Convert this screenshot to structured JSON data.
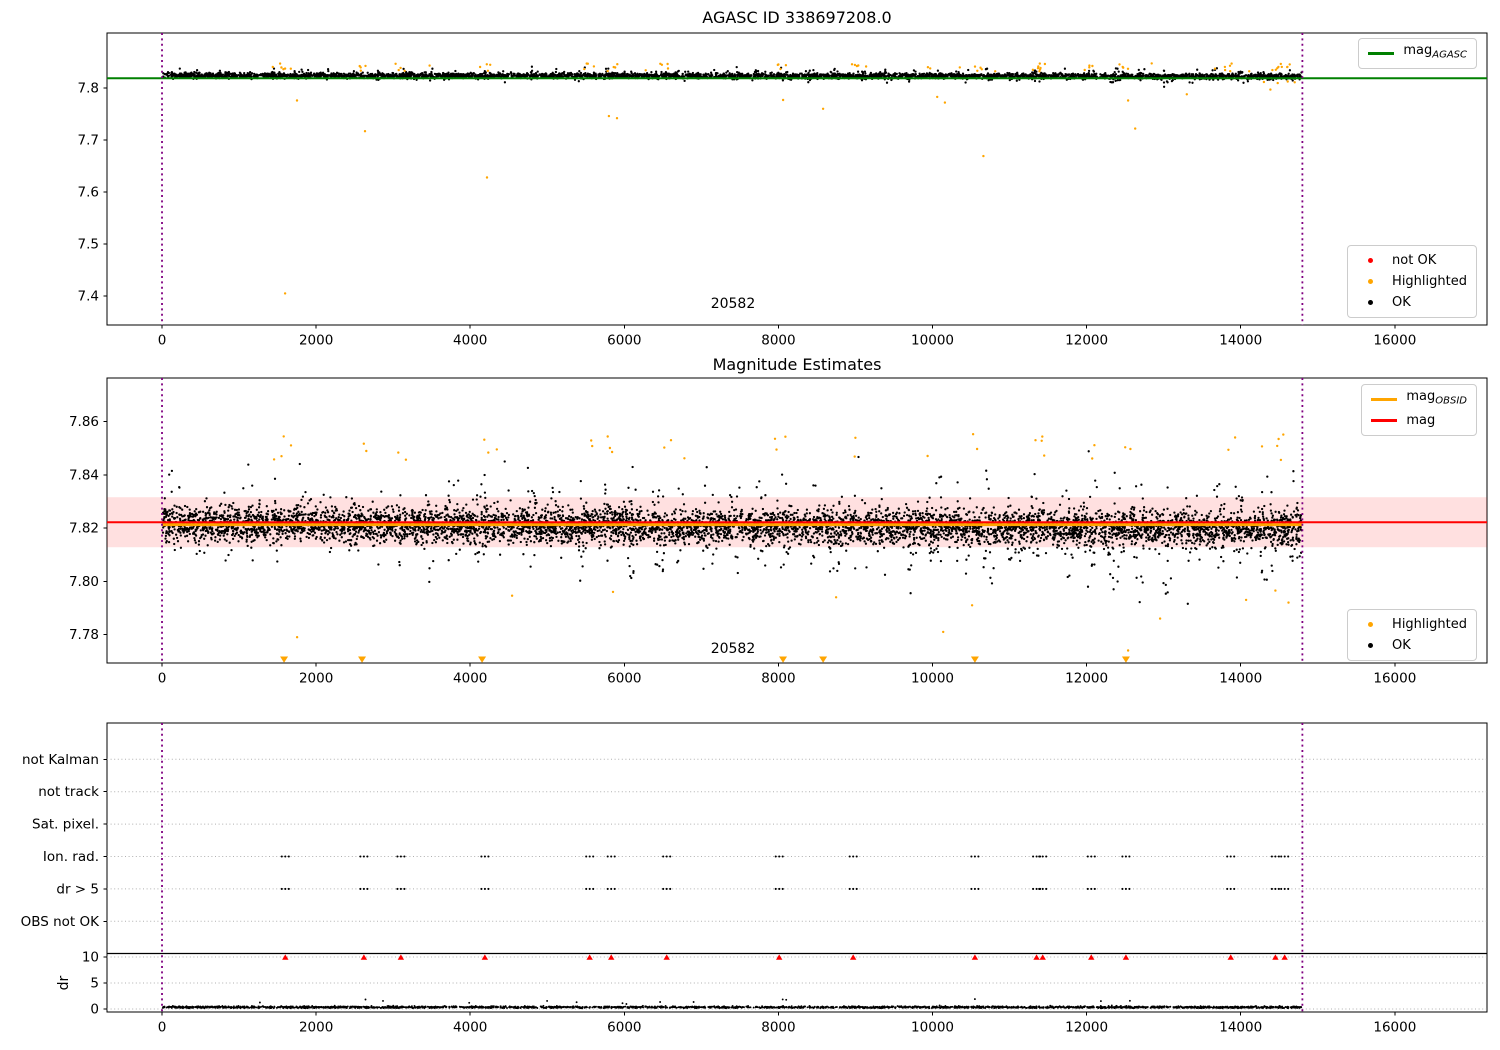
{
  "chart_data": [
    {
      "type": "scatter",
      "title": "AGASC ID 338697208.0",
      "xlim": [
        -714,
        17196
      ],
      "ylim": [
        7.3443,
        7.9058
      ],
      "xticks": [
        0,
        2000,
        4000,
        6000,
        8000,
        10000,
        12000,
        14000,
        16000
      ],
      "yticks": [
        7.4,
        7.5,
        7.6,
        7.7,
        7.8
      ],
      "ytick_decimals": 1,
      "interval": [
        0,
        14800
      ],
      "interval_color": "#800080",
      "mag_agasc_line": {
        "value": 7.8187,
        "color": "#008000"
      },
      "annotation": {
        "text": "20582",
        "x": 7410,
        "y": 7.379
      },
      "ok_series": {
        "name": "OK",
        "color": "#000000",
        "n": 4200,
        "x_range": [
          10,
          14790
        ],
        "mean": 7.8243,
        "std": 0.0042,
        "trend": -0.0018,
        "spike_up": 0.02,
        "spike_down": 0.015,
        "clip": [
          7.801,
          7.852
        ],
        "seed": 101
      },
      "highlight_series": {
        "name": "Highlighted",
        "color": "#ffa500",
        "per_flag": 4,
        "jitter": 90,
        "y_range": [
          7.8315,
          7.8475
        ],
        "extra_n": 14,
        "seed": 202
      },
      "highlight_outliers": [
        [
          1597,
          7.405
        ],
        [
          1752,
          7.776
        ],
        [
          2635,
          7.717
        ],
        [
          4218,
          7.628
        ],
        [
          5800,
          7.746
        ],
        [
          5905,
          7.742
        ],
        [
          8060,
          7.777
        ],
        [
          8580,
          7.76
        ],
        [
          10060,
          7.783
        ],
        [
          10160,
          7.772
        ],
        [
          10660,
          7.669
        ],
        [
          12538,
          7.776
        ],
        [
          12630,
          7.722
        ],
        [
          13300,
          7.788
        ],
        [
          14385,
          7.797
        ],
        [
          14300,
          7.8115
        ],
        [
          14480,
          7.8095
        ],
        [
          14610,
          7.8125
        ],
        [
          14700,
          7.811
        ]
      ],
      "legend_line": [
        {
          "base": "mag",
          "sub": "AGASC",
          "color": "#008000"
        }
      ],
      "legend_markers": [
        {
          "label": "not OK",
          "color": "#ff0000"
        },
        {
          "label": "Highlighted",
          "color": "#ffa500"
        },
        {
          "label": "OK",
          "color": "#000000"
        }
      ]
    },
    {
      "type": "scatter",
      "title": "Magnitude Estimates",
      "xlim": [
        -714,
        17196
      ],
      "ylim": [
        7.7693,
        7.8764
      ],
      "xticks": [
        0,
        2000,
        4000,
        6000,
        8000,
        10000,
        12000,
        14000,
        16000
      ],
      "yticks": [
        7.78,
        7.8,
        7.82,
        7.84,
        7.86
      ],
      "ytick_decimals": 2,
      "interval": [
        0,
        14800
      ],
      "interval_color": "#800080",
      "mag_line": {
        "label": "mag",
        "value": 7.8222,
        "color": "#ff0000"
      },
      "mag_obsid_line": {
        "base": "mag",
        "sub": "OBSID",
        "value": 7.8213,
        "color": "#ffa500"
      },
      "band": {
        "lo": 7.8128,
        "hi": 7.8316,
        "color": "rgba(255,0,0,0.12)"
      },
      "annotation": {
        "text": "20582",
        "x": 7410,
        "y": 7.7735
      },
      "ok_series": {
        "name": "OK",
        "color": "#000000",
        "n": 6800,
        "x_range": [
          10,
          14790
        ],
        "mean": 7.8217,
        "std": 0.0052,
        "trend": -0.002,
        "spike_up": 0.026,
        "spike_down": 0.028,
        "clip": [
          7.7703,
          7.857
        ],
        "seed": 303
      },
      "highlight_series": {
        "name": "Highlighted",
        "color": "#ffa500",
        "per_flag": 2,
        "jitter": 70,
        "y_range": [
          7.8455,
          7.8555
        ],
        "extra_n": 8,
        "seed": 404
      },
      "highlight_outliers": [
        [
          1753,
          7.779
        ],
        [
          4544,
          7.7946
        ],
        [
          5853,
          7.796
        ],
        [
          8749,
          7.794
        ],
        [
          10138,
          7.781
        ],
        [
          10514,
          7.791
        ],
        [
          12538,
          7.774
        ],
        [
          12953,
          7.786
        ],
        [
          14070,
          7.793
        ],
        [
          14450,
          7.7965
        ],
        [
          14620,
          7.792
        ]
      ],
      "clipped_low_x": [
        1584,
        2596,
        4154,
        8060,
        8580,
        10550,
        12510
      ],
      "legend_line": [
        {
          "base": "mag",
          "sub": "OBSID",
          "color": "#ffa500"
        },
        {
          "base": "mag",
          "sub": "",
          "color": "#ff0000"
        }
      ],
      "legend_markers": [
        {
          "label": "Highlighted",
          "color": "#ffa500"
        },
        {
          "label": "OK",
          "color": "#000000"
        }
      ]
    },
    {
      "type": "flags",
      "categories": [
        "not Kalman",
        "not track",
        "Sat. pixel.",
        "Ion. rad.",
        "dr > 5",
        "OBS not OK"
      ],
      "flag_categories": [
        "Ion. rad.",
        "dr > 5"
      ],
      "flag_x": [
        1600,
        2620,
        3100,
        4190,
        5550,
        5830,
        6550,
        8010,
        8970,
        10550,
        11350,
        11430,
        12060,
        12510,
        13870,
        14450,
        14570
      ],
      "flag_color": "#000000",
      "not_ok_color": "#ff0000",
      "grid_color": "#b0b0b0",
      "dr_ticks": [
        0,
        5,
        10
      ],
      "dr_limit": 10,
      "ylabel": "dr",
      "xticks": [
        0,
        2000,
        4000,
        6000,
        8000,
        10000,
        12000,
        14000,
        16000
      ],
      "interval": [
        0,
        14800
      ],
      "interval_color": "#800080",
      "dr_series": {
        "n": 2600,
        "x_range": [
          10,
          14790
        ],
        "base": 0.14,
        "color": "#000000",
        "seed": 505
      },
      "dr_outliers": [
        [
          10550,
          1.9
        ]
      ]
    }
  ]
}
